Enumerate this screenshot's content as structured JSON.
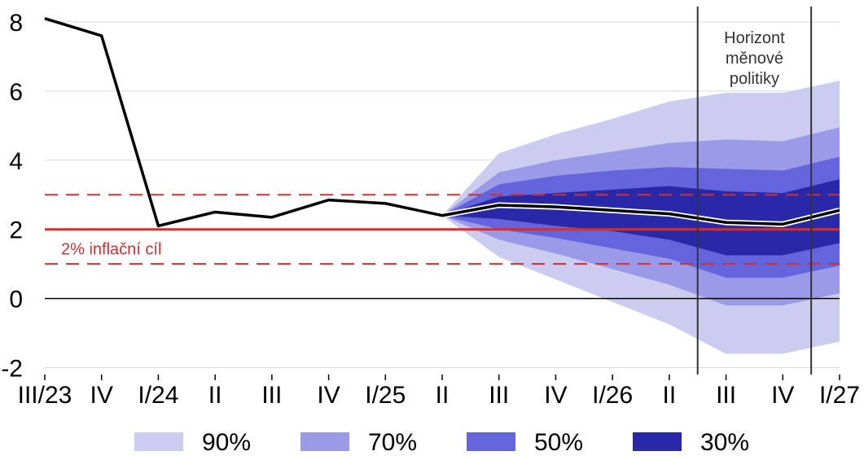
{
  "chart_data": {
    "type": "line",
    "title": "",
    "xlabel": "",
    "ylabel": "",
    "categories": [
      "III/23",
      "IV",
      "I/24",
      "II",
      "III",
      "IV",
      "I/25",
      "II",
      "III",
      "IV",
      "I/26",
      "II",
      "III",
      "IV",
      "I/27"
    ],
    "ylim": [
      -2.2,
      8.4
    ],
    "yticks": [
      -2,
      0,
      2,
      4,
      6,
      8
    ],
    "grid": true,
    "series": [
      {
        "values": [
          8.1,
          7.6,
          2.1,
          2.5,
          2.35,
          2.85,
          2.75,
          2.4,
          2.7,
          2.65,
          2.55,
          2.45,
          2.2,
          2.15,
          2.55
        ],
        "color": "#000000"
      }
    ],
    "fan_start_index": 7,
    "fan_bands": [
      {
        "name": "90%",
        "color": "#ccccf0",
        "lower": [
          2.4,
          1.2,
          0.55,
          -0.1,
          -0.75,
          -1.6,
          -1.6,
          -1.25
        ],
        "upper": [
          2.4,
          4.2,
          4.75,
          5.2,
          5.7,
          5.95,
          5.95,
          6.3
        ]
      },
      {
        "name": "70%",
        "color": "#9a9ae8",
        "lower": [
          2.4,
          1.7,
          1.3,
          0.85,
          0.4,
          -0.2,
          -0.2,
          0.15
        ],
        "upper": [
          2.4,
          3.65,
          4.0,
          4.25,
          4.5,
          4.6,
          4.55,
          4.95
        ]
      },
      {
        "name": "50%",
        "color": "#6464dc",
        "lower": [
          2.4,
          2.0,
          1.75,
          1.45,
          1.15,
          0.6,
          0.6,
          0.95
        ],
        "upper": [
          2.4,
          3.3,
          3.55,
          3.7,
          3.8,
          3.75,
          3.7,
          4.1
        ]
      },
      {
        "name": "30%",
        "color": "#2828a8",
        "lower": [
          2.4,
          2.3,
          2.1,
          1.95,
          1.7,
          1.25,
          1.25,
          1.6
        ],
        "upper": [
          2.4,
          2.95,
          3.05,
          3.15,
          3.25,
          3.1,
          3.05,
          3.45
        ]
      }
    ],
    "target": {
      "value": 2,
      "label": "2% inflační cíl",
      "color": "#d03030",
      "band": [
        1,
        3
      ]
    },
    "annotation": {
      "lines": [
        "Horizont",
        "měnové",
        "politiky"
      ],
      "between_categories": [
        11,
        14
      ]
    },
    "legend": {
      "placement": "bottom",
      "entries": [
        "90%",
        "70%",
        "50%",
        "30%"
      ]
    }
  }
}
